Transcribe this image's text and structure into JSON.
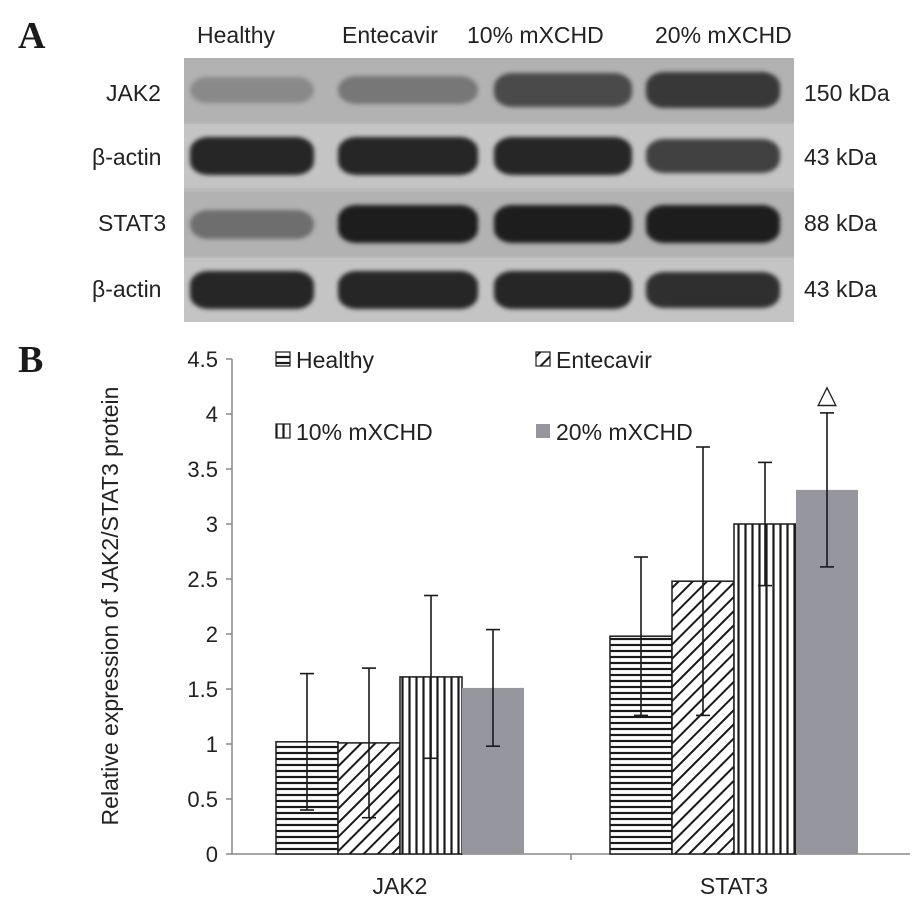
{
  "panels": {
    "a": {
      "letter": "A"
    },
    "b": {
      "letter": "B"
    }
  },
  "western_blot": {
    "lanes": [
      "Healthy",
      "Entecavir",
      "10% mXCHD",
      "20% mXCHD"
    ],
    "rows": [
      {
        "label": "JAK2",
        "kda": "150 kDa",
        "band_intensity": [
          0.35,
          0.45,
          0.7,
          0.8
        ]
      },
      {
        "label": "β-actin",
        "kda": "43 kDa",
        "band_intensity": [
          0.9,
          0.9,
          0.9,
          0.75
        ]
      },
      {
        "label": "STAT3",
        "kda": "88 kDa",
        "band_intensity": [
          0.5,
          0.95,
          0.95,
          0.95
        ]
      },
      {
        "label": "β-actin",
        "kda": "43 kDa",
        "band_intensity": [
          0.9,
          0.9,
          0.9,
          0.85
        ]
      }
    ]
  },
  "chart_data": {
    "type": "bar",
    "categories": [
      "JAK2",
      "STAT3"
    ],
    "ylabel": "Relative expression  of JAK2/STAT3 protein",
    "ylim": [
      0,
      4.5
    ],
    "yticks": [
      "0",
      "0.5",
      "1",
      "1.5",
      "2",
      "2.5",
      "3",
      "3.5",
      "4",
      "4.5"
    ],
    "grid": false,
    "legend_position": "top",
    "series": [
      {
        "name": "Healthy",
        "pattern": "horizontal-stripes",
        "values": [
          1.02,
          1.98
        ],
        "errors": [
          0.62,
          0.72
        ]
      },
      {
        "name": "Entecavir",
        "pattern": "diagonal-stripes",
        "values": [
          1.01,
          2.48
        ],
        "errors": [
          0.68,
          1.22
        ]
      },
      {
        "name": "10% mXCHD",
        "pattern": "vertical-stripes",
        "values": [
          1.61,
          3.0
        ],
        "errors": [
          0.74,
          0.56
        ]
      },
      {
        "name": "20% mXCHD",
        "pattern": "solid",
        "color": "#96969e",
        "values": [
          1.51,
          3.31
        ],
        "errors": [
          0.53,
          0.7
        ]
      }
    ],
    "annotations": [
      {
        "text": "△",
        "category": "STAT3",
        "series": "20% mXCHD"
      }
    ]
  }
}
